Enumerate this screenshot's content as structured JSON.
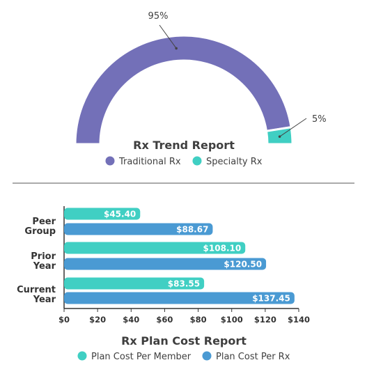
{
  "colors": {
    "traditional": "#7370b8",
    "specialty": "#40cfc3",
    "member": "#40cfc3",
    "rx": "#4a9ad3",
    "axis": "#333333",
    "divider": "#555555"
  },
  "chart_data": [
    {
      "type": "pie",
      "variant": "half-donut",
      "title": "Rx Trend Report",
      "slices": [
        {
          "name": "Traditional Rx",
          "value": 95,
          "label": "95%"
        },
        {
          "name": "Specialty Rx",
          "value": 5,
          "label": "5%"
        }
      ],
      "legend": [
        "Traditional Rx",
        "Specialty Rx"
      ],
      "legend_position": "bottom"
    },
    {
      "type": "bar",
      "orientation": "horizontal",
      "title": "Rx Plan Cost Report",
      "categories": [
        [
          "Peer",
          "Group"
        ],
        [
          "Prior",
          "Year"
        ],
        [
          "Current",
          "Year"
        ]
      ],
      "series": [
        {
          "name": "Plan Cost Per Member",
          "values": [
            45.4,
            108.1,
            83.55
          ],
          "labels": [
            "$45.40",
            "$108.10",
            "$83.55"
          ]
        },
        {
          "name": "Plan Cost Per Rx",
          "values": [
            88.67,
            120.5,
            137.45
          ],
          "labels": [
            "$88.67",
            "$120.50",
            "$137.45"
          ]
        }
      ],
      "xlim": [
        0,
        140
      ],
      "xticks": [
        "$0",
        "$20",
        "$40",
        "$60",
        "$80",
        "$100",
        "$120",
        "$140"
      ],
      "legend_position": "bottom"
    }
  ]
}
